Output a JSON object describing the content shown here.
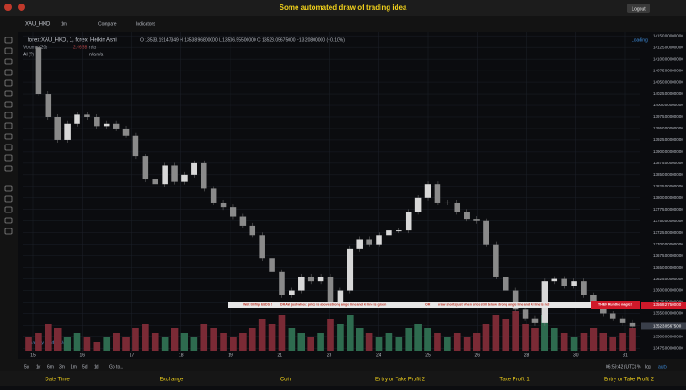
{
  "header": {
    "title": "Some automated draw of trading idea",
    "logout": "Logout"
  },
  "toolbar": {
    "symbol": "XAU_HKD",
    "interval": "1m",
    "compare": "Compare",
    "indicators": "Indicators"
  },
  "legend": {
    "symbol": "forex:XAU_HKD, 1, forex, Heikin Ashi",
    "ohlc": "O 13533.19147349   H 13538.96800000   L 13506.55500000   C 13523.05675000   −13.20800000 (−0.10%)",
    "volume": "Volume (20)",
    "volume_value": "2.4658",
    "volume_na": "n/a",
    "ai": "AI (?)",
    "ai_na": "n/a  n/a",
    "loading": "Loading"
  },
  "banner": {
    "parts": [
      "Wait till flip ENDS !",
      "DRAW just when:  price is above strong angle line and AI line is green",
      "OR",
      "draw shorts just when price still below strong angle line and AI line is red"
    ],
    "cta": "THEN Run the magic!!"
  },
  "watermark": "Chart by TradingView",
  "bottom_bar": {
    "ranges": [
      "5y",
      "1y",
      "6m",
      "3m",
      "1m",
      "5d",
      "1d",
      "Go to..."
    ],
    "time": "06:59:42 (UTC)",
    "percent": "%",
    "log": "log",
    "auto": "auto"
  },
  "footer": [
    "Date Time",
    "Exchange",
    "Coin",
    "Entry or Take Profit 2",
    "Take Profit 1",
    "Entry or Take Profit 2"
  ],
  "chart_data": {
    "type": "candlestick",
    "x_labels": [
      "15",
      "16",
      "17",
      "18",
      "19",
      "21",
      "23",
      "24",
      "25",
      "26",
      "28",
      "30",
      "31"
    ],
    "closes": [
      14125,
      14025,
      13975,
      13925,
      13960,
      13980,
      13975,
      13955,
      13960,
      13950,
      13935,
      13890,
      13840,
      13830,
      13870,
      13835,
      13850,
      13875,
      13820,
      13790,
      13780,
      13760,
      13740,
      13720,
      13670,
      13640,
      13590,
      13600,
      13630,
      13620,
      13630,
      13575,
      13600,
      13690,
      13710,
      13700,
      13720,
      13730,
      13730,
      13770,
      13800,
      13830,
      13790,
      13790,
      13770,
      13755,
      13750,
      13700,
      13630,
      13600,
      13560,
      13540,
      13530,
      13620,
      13625,
      13610,
      13620,
      13590,
      13570,
      13550,
      13540,
      13530,
      13523
    ],
    "volumes": [
      3,
      4,
      6,
      5,
      3,
      4,
      3,
      2,
      3,
      4,
      3,
      5,
      6,
      4,
      3,
      5,
      4,
      3,
      6,
      5,
      4,
      3,
      4,
      5,
      7,
      6,
      8,
      5,
      4,
      3,
      4,
      7,
      6,
      8,
      5,
      4,
      3,
      4,
      3,
      5,
      6,
      5,
      4,
      3,
      4,
      3,
      4,
      6,
      8,
      7,
      9,
      6,
      5,
      8,
      5,
      4,
      3,
      4,
      5,
      4,
      3,
      4,
      5
    ],
    "volume_ylim": [
      0,
      20
    ],
    "ylim": [
      13470,
      14160
    ],
    "yticks": [
      {
        "value": 14150,
        "label": "14150.00000000"
      },
      {
        "value": 14125,
        "label": "14125.00000000"
      },
      {
        "value": 14100,
        "label": "14100.00000000"
      },
      {
        "value": 14075,
        "label": "14075.00000000"
      },
      {
        "value": 14050,
        "label": "14050.00000000"
      },
      {
        "value": 14025,
        "label": "14025.00000000"
      },
      {
        "value": 14000,
        "label": "14000.00000000"
      },
      {
        "value": 13975,
        "label": "13975.00000000"
      },
      {
        "value": 13950,
        "label": "13950.00000000"
      },
      {
        "value": 13925,
        "label": "13925.00000000"
      },
      {
        "value": 13900,
        "label": "13900.00000000"
      },
      {
        "value": 13875,
        "label": "13875.00000000"
      },
      {
        "value": 13850,
        "label": "13850.00000000"
      },
      {
        "value": 13825,
        "label": "13825.00000000"
      },
      {
        "value": 13800,
        "label": "13800.00000000"
      },
      {
        "value": 13775,
        "label": "13775.00000000"
      },
      {
        "value": 13750,
        "label": "13750.00000000"
      },
      {
        "value": 13725,
        "label": "13725.00000000"
      },
      {
        "value": 13700,
        "label": "13700.00000000"
      },
      {
        "value": 13675,
        "label": "13675.00000000"
      },
      {
        "value": 13650,
        "label": "13650.00000000"
      },
      {
        "value": 13625,
        "label": "13625.00000000"
      },
      {
        "value": 13600,
        "label": "13600.00000000"
      },
      {
        "value": 13575,
        "label": "13575.00000000"
      },
      {
        "value": 13550,
        "label": "13550.00000000"
      },
      {
        "value": 13525,
        "label": "13525.00000000"
      },
      {
        "value": 13500,
        "label": "13500.00000000"
      },
      {
        "value": 13475,
        "label": "13475.00000000"
      }
    ],
    "price_tags": [
      {
        "value": 13568.275,
        "label": "13568.2750000",
        "color": "#d0192a"
      },
      {
        "value": 13523.05675,
        "label": "13523.0567500",
        "color": "#3a3f4a"
      }
    ],
    "grid": true,
    "up_color": "#d8d8d8",
    "down_color": "#8a8a8a",
    "volume_up_color": "#2e6b4f",
    "volume_down_color": "#7a2a35"
  }
}
